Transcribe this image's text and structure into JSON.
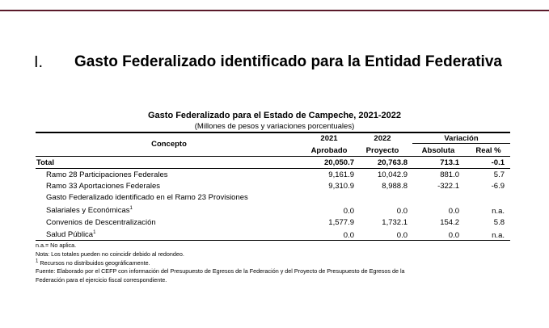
{
  "section": {
    "number": "I.",
    "title": "Gasto Federalizado identificado para la Entidad Federativa"
  },
  "table": {
    "title": "Gasto Federalizado para el Estado de Campeche, 2021-2022",
    "subtitle": "(Millones de pesos y variaciones porcentuales)",
    "headers": {
      "concepto": "Concepto",
      "y2021": "2021",
      "y2022": "2022",
      "variacion": "Variación",
      "aprobado": "Aprobado",
      "proyecto": "Proyecto",
      "absoluta": "Absoluta",
      "real": "Real %"
    },
    "rows": [
      {
        "label": "Total",
        "v2021": "20,050.7",
        "v2022": "20,763.8",
        "abs": "713.1",
        "real": "-0.1"
      },
      {
        "label": "Ramo 28 Participaciones Federales",
        "v2021": "9,161.9",
        "v2022": "10,042.9",
        "abs": "881.0",
        "real": "5.7"
      },
      {
        "label": "Ramo 33 Aportaciones Federales",
        "v2021": "9,310.9",
        "v2022": "8,988.8",
        "abs": "-322.1",
        "real": "-6.9"
      },
      {
        "label_line1": "Gasto Federalizado identificado en el Ramo 23 Provisiones",
        "label_line2": "Salariales y Económicas",
        "sup": "1",
        "v2021": "0.0",
        "v2022": "0.0",
        "abs": "0.0",
        "real": "n.a."
      },
      {
        "label": "Convenios de Descentralización",
        "v2021": "1,577.9",
        "v2022": "1,732.1",
        "abs": "154.2",
        "real": "5.8"
      },
      {
        "label": "Salud Pública",
        "sup": "1",
        "v2021": "0.0",
        "v2022": "0.0",
        "abs": "0.0",
        "real": "n.a."
      }
    ]
  },
  "notes": {
    "na": "n.a.= No aplica.",
    "nota": "Nota: Los totales pueden no coincidir debido al redondeo.",
    "n1_sup": "1",
    "n1": "Recursos no distribuidos geográficamente.",
    "fuente1": "Fuente: Elaborado por el CEFP con información del Presupuesto de Egresos de la Federación y del Proyecto de Presupuesto de Egresos de la",
    "fuente2": "Federación para el ejercicio fiscal correspondiente."
  }
}
